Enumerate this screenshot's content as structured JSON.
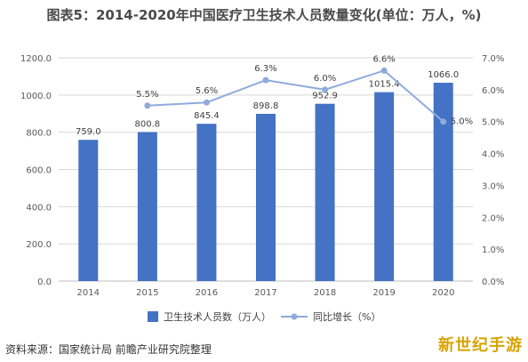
{
  "title": "图表5：2014-2020年中国医疗卫生技术人员数量变化(单位：万人，%)",
  "source": "资料来源：国家统计局 前瞻产业研究院整理",
  "corner_logo": "新世纪手游",
  "colors": {
    "bar": "#4472c4",
    "line": "#8faadc",
    "grid": "#d9d9d9"
  },
  "chart_data": {
    "type": "bar",
    "categories": [
      "2014",
      "2015",
      "2016",
      "2017",
      "2018",
      "2019",
      "2020"
    ],
    "series": [
      {
        "name": "卫生技术人员数（万人）",
        "type": "bar",
        "axis": "left",
        "values": [
          759.0,
          800.8,
          845.4,
          898.8,
          952.9,
          1015.4,
          1066.0
        ],
        "labels": [
          "759.0",
          "800.8",
          "845.4",
          "898.8",
          "952.9",
          "1015.4",
          "1066.0"
        ]
      },
      {
        "name": "同比增长（%）",
        "type": "line",
        "axis": "right",
        "values": [
          null,
          5.5,
          5.6,
          6.3,
          6.0,
          6.6,
          5.0
        ],
        "labels": [
          "",
          "5.5%",
          "5.6%",
          "6.3%",
          "6.0%",
          "6.6%",
          "5.0%"
        ]
      }
    ],
    "y_left": {
      "min": 0,
      "max": 1200,
      "step": 200,
      "tick_labels": [
        "0.0",
        "200.0",
        "400.0",
        "600.0",
        "800.0",
        "1000.0",
        "1200.0"
      ]
    },
    "y_right": {
      "min": 0,
      "max": 7,
      "step": 1,
      "tick_labels": [
        "0.0%",
        "1.0%",
        "2.0%",
        "3.0%",
        "4.0%",
        "5.0%",
        "6.0%",
        "7.0%"
      ]
    },
    "grid": true,
    "legend_position": "bottom"
  }
}
